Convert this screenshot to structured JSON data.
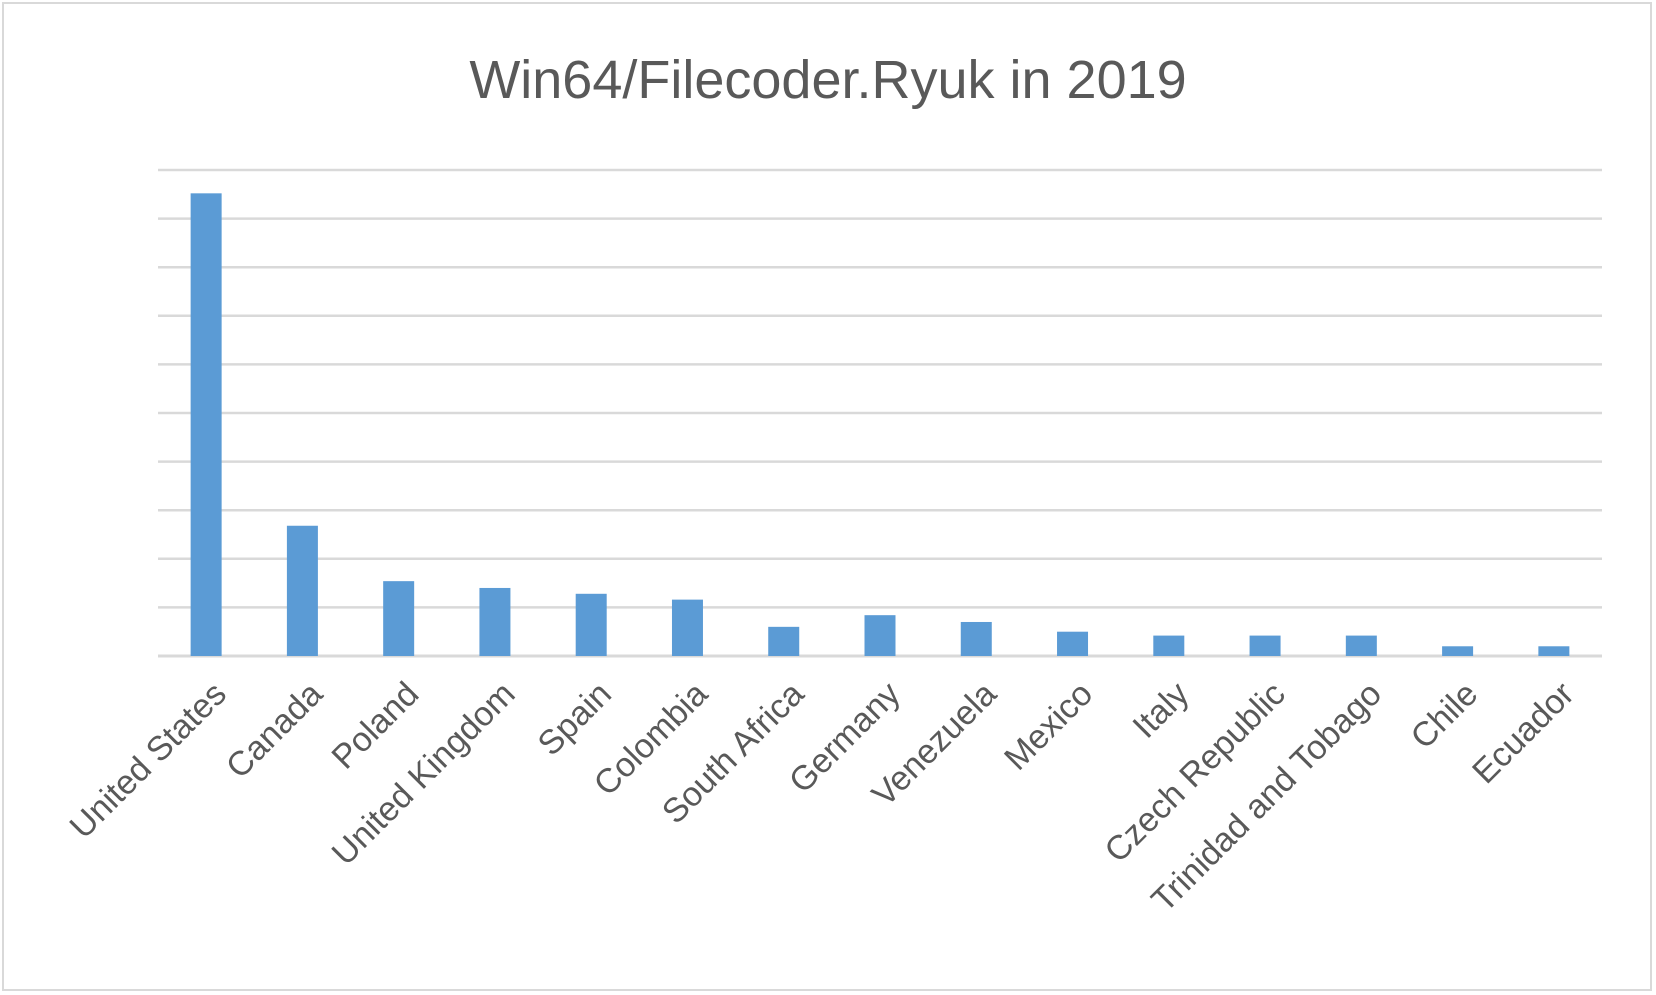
{
  "chart_data": {
    "type": "bar",
    "title": "Win64/Filecoder.Ryuk in 2019",
    "xlabel": "",
    "ylabel": "",
    "categories": [
      "United States",
      "Canada",
      "Poland",
      "United Kingdom",
      "Spain",
      "Colombia",
      "South Africa",
      "Germany",
      "Venezuela",
      "Mexico",
      "Italy",
      "Czech Republic",
      "Trinidad and Tobago",
      "Chile",
      "Ecuador"
    ],
    "values": [
      0.476,
      0.134,
      0.077,
      0.07,
      0.064,
      0.058,
      0.03,
      0.042,
      0.035,
      0.025,
      0.021,
      0.021,
      0.021,
      0.01,
      0.01
    ],
    "ylim": [
      0,
      0.5
    ],
    "y_ticks_visible": false,
    "grid": true,
    "legend": "none",
    "bar_color": "#5b9bd5",
    "grid_color": "#d9d9d9",
    "text_color": "#595959"
  }
}
